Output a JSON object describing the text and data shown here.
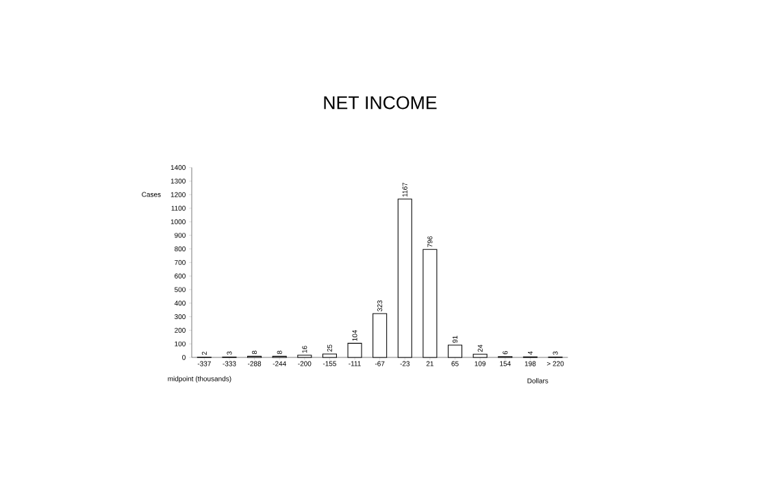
{
  "chart_data": {
    "type": "bar",
    "title": "NET INCOME",
    "ylabel": "Cases",
    "xlabel": "midpoint (thousands)",
    "annotations": [
      "Dollars"
    ],
    "categories": [
      "-337",
      "-333",
      "-288",
      "-244",
      "-200",
      "-155",
      "-111",
      "-67",
      "-23",
      "21",
      "65",
      "109",
      "154",
      "198",
      "> 220"
    ],
    "values": [
      2,
      3,
      8,
      8,
      16,
      25,
      104,
      323,
      1167,
      796,
      91,
      24,
      6,
      4,
      3
    ],
    "color": "#000000",
    "ylim": [
      0,
      1400
    ],
    "yticks": [
      0,
      100,
      200,
      300,
      400,
      500,
      600,
      700,
      800,
      900,
      1000,
      1100,
      1200,
      1300,
      1400
    ],
    "data_labels": true
  }
}
